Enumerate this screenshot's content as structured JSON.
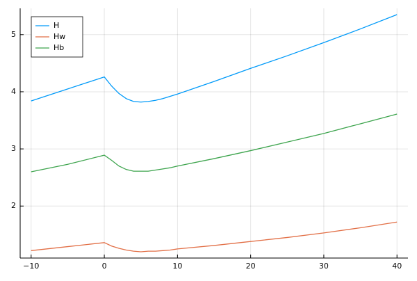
{
  "chart_data": {
    "type": "line",
    "x": [
      -10,
      -5,
      0,
      1,
      2,
      3,
      4,
      5,
      6,
      7,
      8,
      9,
      10,
      15,
      20,
      25,
      30,
      35,
      40
    ],
    "series": [
      {
        "name": "H",
        "color": "#009af9",
        "values": [
          3.84,
          4.05,
          4.26,
          4.1,
          3.97,
          3.88,
          3.83,
          3.82,
          3.83,
          3.85,
          3.88,
          3.92,
          3.96,
          4.18,
          4.41,
          4.63,
          4.86,
          5.1,
          5.35
        ]
      },
      {
        "name": "Hw",
        "color": "#e26f46",
        "values": [
          1.22,
          1.29,
          1.36,
          1.3,
          1.26,
          1.23,
          1.21,
          1.2,
          1.21,
          1.21,
          1.22,
          1.23,
          1.25,
          1.31,
          1.38,
          1.45,
          1.53,
          1.62,
          1.72
        ]
      },
      {
        "name": "Hb",
        "color": "#3da44d",
        "values": [
          2.6,
          2.73,
          2.89,
          2.8,
          2.7,
          2.64,
          2.61,
          2.61,
          2.61,
          2.63,
          2.65,
          2.67,
          2.7,
          2.83,
          2.97,
          3.12,
          3.27,
          3.44,
          3.61
        ]
      }
    ],
    "xlim": [
      -11.5,
      41.5
    ],
    "ylim": [
      1.09,
      5.46
    ],
    "xticks": [
      {
        "value": -10,
        "label": "−10"
      },
      0,
      10,
      20,
      30,
      40
    ],
    "yticks": [
      2,
      3,
      4,
      5
    ],
    "grid": true,
    "legend": "top-left"
  }
}
